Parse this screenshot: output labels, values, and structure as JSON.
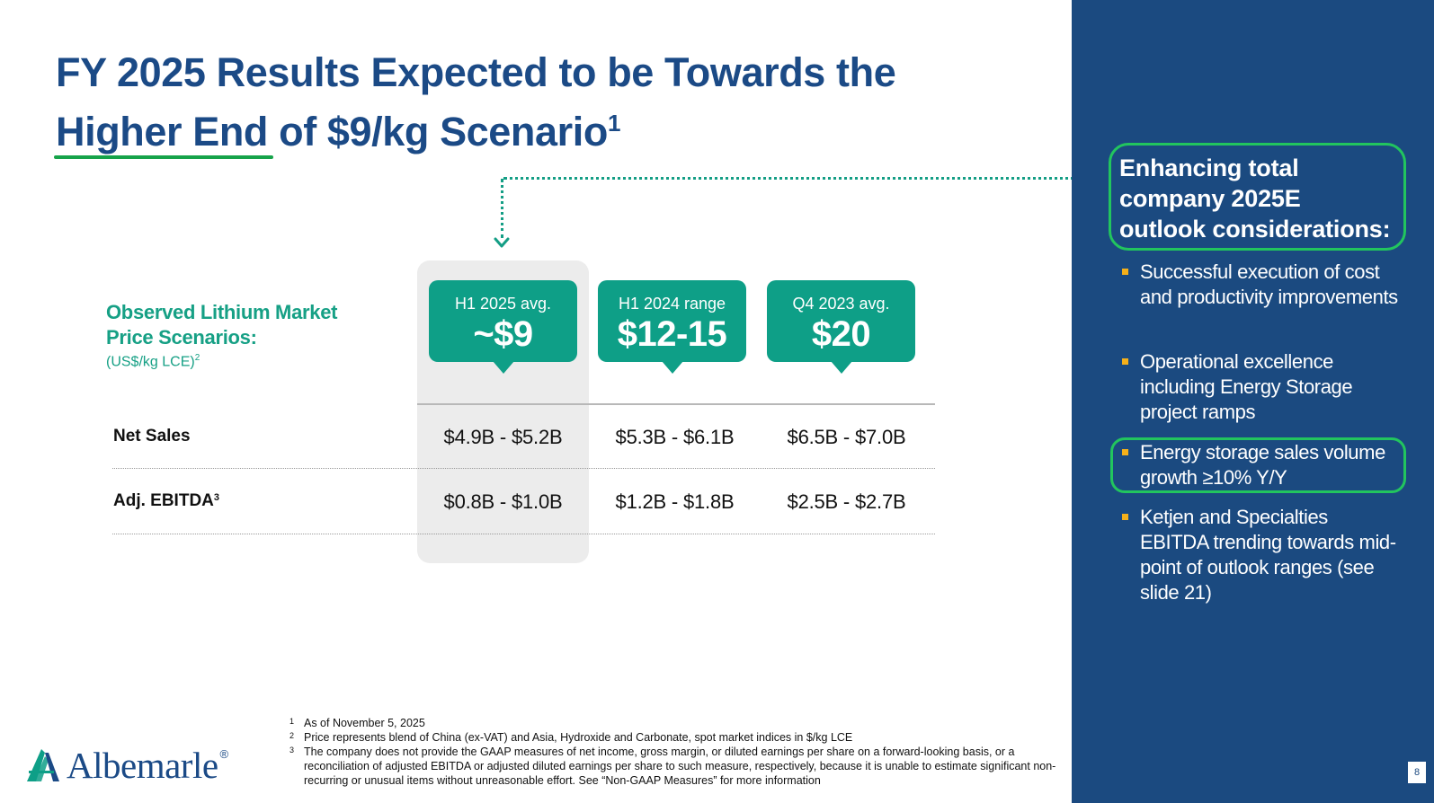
{
  "title": {
    "line1": "FY 2025 Results Expected to be Towards the",
    "highlight": "Higher End",
    "line2_rest": " of $9/kg Scenario",
    "superscript": "1"
  },
  "scenarios_label": {
    "heading": "Observed Lithium Market Price Scenarios:",
    "unit": "(US$/kg LCE)",
    "unit_sup": "2"
  },
  "scenarios": [
    {
      "sub": "H1 2025 avg.",
      "value": "~$9"
    },
    {
      "sub": "H1 2024 range",
      "value": "$12-15"
    },
    {
      "sub": "Q4 2023 avg.",
      "value": "$20"
    }
  ],
  "table": {
    "rows": [
      {
        "label": "Net Sales",
        "sup": "",
        "values": [
          "$4.9B - $5.2B",
          "$5.3B - $6.1B",
          "$6.5B - $7.0B"
        ]
      },
      {
        "label": "Adj. EBITDA",
        "sup": "3",
        "values": [
          "$0.8B - $1.0B",
          "$1.2B - $1.8B",
          "$2.5B - $2.7B"
        ]
      }
    ]
  },
  "footnotes": [
    {
      "num": "1",
      "text": "As of November 5, 2025"
    },
    {
      "num": "2",
      "text": "Price represents blend of China (ex-VAT) and Asia, Hydroxide and Carbonate, spot market indices in $/kg LCE"
    },
    {
      "num": "3",
      "text": "The company does not provide the GAAP measures of net income, gross margin, or diluted earnings per share on a forward-looking basis, or a reconciliation of adjusted EBITDA or adjusted diluted earnings per share to such measure, respectively, because it is unable to estimate significant non-recurring or unusual items without unreasonable effort. See “Non-GAAP Measures” for more information"
    }
  ],
  "logo": {
    "text": "Albemarle",
    "reg": "®"
  },
  "panel": {
    "heading_lines": [
      "Enhancing total",
      "company 2025E",
      "outlook considerations:"
    ],
    "bullets": [
      "Successful execution of cost and productivity improvements",
      "Operational excellence including Energy Storage project ramps",
      "Energy storage sales volume growth ≥10% Y/Y",
      "Ketjen and Specialties EBITDA trending towards mid-point of outlook ranges (see slide 21)"
    ]
  },
  "page_number": "8",
  "colors": {
    "navy": "#1b4a80",
    "teal": "#0e9f87",
    "green_outline": "#22c55e",
    "bullet": "#f5b01a"
  }
}
